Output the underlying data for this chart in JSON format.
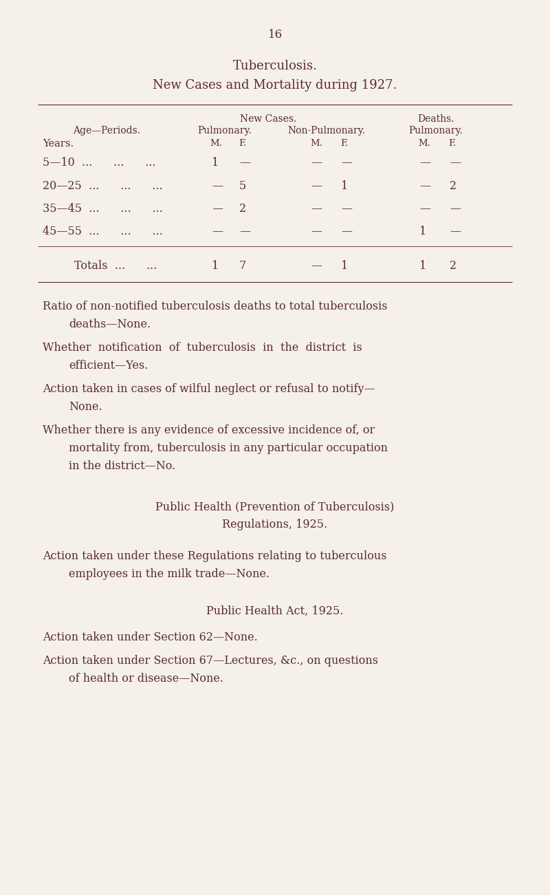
{
  "bg_color": "#f5f0e8",
  "text_color": "#5a2d2d",
  "page_number": "16",
  "title1": "Tuberculosis.",
  "title2": "New Cases and Mortality during 1927.",
  "age_header": "Age—Periods.",
  "years_header": "Years.",
  "new_cases_header": "New Cases.",
  "deaths_header": "Deaths.",
  "pulmonary_label": "Pulmonary.",
  "nonpulmonary_label": "Non-Pulmonary.",
  "deaths_pulmonary_label": "Pulmonary.",
  "m_label": "M.",
  "f_label": "F.",
  "rows": [
    {
      "age": "5—10  ...      ...      ...",
      "pulm_m": "1",
      "pulm_f": "—",
      "nonpulm_m": "—",
      "nonpulm_f": "—",
      "death_m": "—",
      "death_f": "—"
    },
    {
      "age": "20—25  ...      ...      ...",
      "pulm_m": "—",
      "pulm_f": "5",
      "nonpulm_m": "—",
      "nonpulm_f": "1",
      "death_m": "—",
      "death_f": "2"
    },
    {
      "age": "35—45  ...      ...      ...",
      "pulm_m": "—",
      "pulm_f": "2",
      "nonpulm_m": "—",
      "nonpulm_f": "—",
      "death_m": "—",
      "death_f": "—"
    },
    {
      "age": "45—55  ...      ...      ...",
      "pulm_m": "—",
      "pulm_f": "—",
      "nonpulm_m": "—",
      "nonpulm_f": "—",
      "death_m": "1",
      "death_f": "—"
    }
  ],
  "totals_label": "Totals  ...      ...",
  "totals": {
    "pulm_m": "1",
    "pulm_f": "7",
    "nonpulm_m": "—",
    "nonpulm_f": "1",
    "death_m": "1",
    "death_f": "2"
  },
  "para1_line1": "Ratio of non-notified tuberculosis deaths to total tuberculosis",
  "para1_line2": "deaths—None.",
  "para2_line1": "Whether  notification  of  tuberculosis  in  the  district  is",
  "para2_line2": "efficient—Yes.",
  "para3_line1": "Action taken in cases of wilful neglect or refusal to notify—",
  "para3_line2": "None.",
  "para4_line1": "Whether there is any evidence of excessive incidence of, or",
  "para4_line2": "mortality from, tuberculosis in any particular occupation",
  "para4_line3": "in the district—No.",
  "sec1_title1": "Public Health (Prevention of Tuberculosis)",
  "sec1_title2": "Regulations, 1925.",
  "sec1_line1": "Action taken under these Regulations relating to tuberculous",
  "sec1_line2": "employees in the milk trade—None.",
  "sec2_title": "Public Health Act, 1925.",
  "sec2_para1": "Action taken under Section 62—None.",
  "sec2_line1": "Action taken under Section 67—Lectures, &c., on questions",
  "sec2_line2": "of health or disease—None."
}
